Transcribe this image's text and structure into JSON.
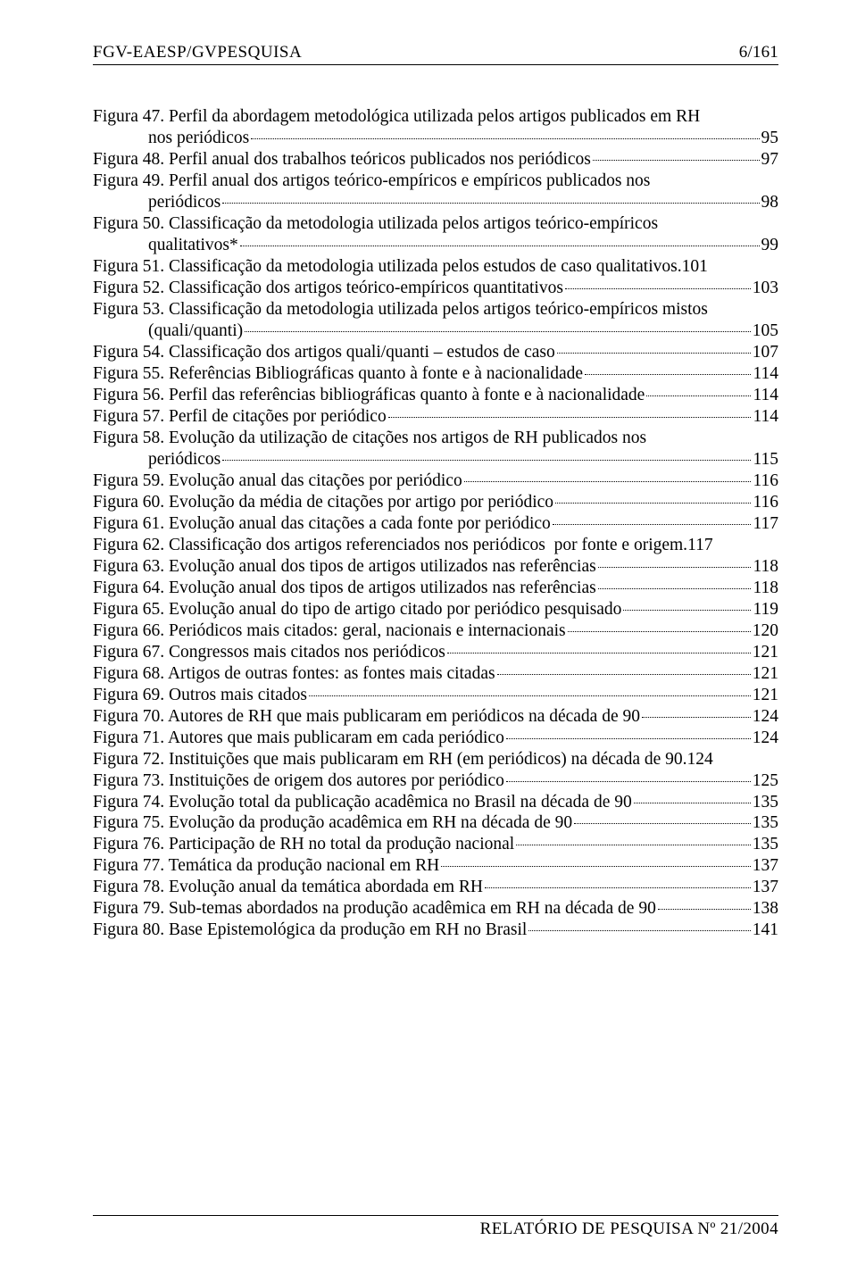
{
  "header": {
    "left": "FGV-EAESP/GVPESQUISA",
    "right": "6/161"
  },
  "footer": {
    "text": "RELATÓRIO DE PESQUISA Nº 21/2004"
  },
  "toc": [
    {
      "lines": [
        "Figura 47. Perfil da abordagem metodológica utilizada pelos artigos publicados em RH",
        "nos periódicos"
      ],
      "page": "95"
    },
    {
      "lines": [
        "Figura 48. Perfil anual dos trabalhos teóricos publicados nos periódicos"
      ],
      "page": "97"
    },
    {
      "lines": [
        "Figura 49. Perfil anual dos artigos teórico-empíricos e empíricos publicados nos",
        "periódicos"
      ],
      "page": "98"
    },
    {
      "lines": [
        "Figura 50. Classificação da metodologia utilizada pelos artigos teórico-empíricos",
        "qualitativos*"
      ],
      "page": "99"
    },
    {
      "lines": [
        "Figura 51. Classificação da metodologia utilizada pelos estudos de caso qualitativos"
      ],
      "page": "101",
      "tight": true
    },
    {
      "lines": [
        "Figura 52. Classificação dos artigos teórico-empíricos quantitativos"
      ],
      "page": "103"
    },
    {
      "lines": [
        "Figura 53. Classificação da metodologia utilizada pelos artigos teórico-empíricos mistos",
        "(quali/quanti)"
      ],
      "page": "105"
    },
    {
      "lines": [
        "Figura 54. Classificação dos artigos quali/quanti – estudos de caso"
      ],
      "page": "107"
    },
    {
      "lines": [
        "Figura 55. Referências Bibliográficas quanto à fonte e à nacionalidade"
      ],
      "page": "114"
    },
    {
      "lines": [
        "Figura 56. Perfil das referências bibliográficas quanto à fonte e à nacionalidade"
      ],
      "page": "114"
    },
    {
      "lines": [
        "Figura 57. Perfil de citações por periódico"
      ],
      "page": "114"
    },
    {
      "lines": [
        "Figura 58. Evolução da utilização de citações nos artigos de RH publicados nos",
        "periódicos"
      ],
      "page": "115"
    },
    {
      "lines": [
        "Figura 59. Evolução anual das citações por periódico"
      ],
      "page": "116"
    },
    {
      "lines": [
        "Figura 60. Evolução da média de citações por artigo por periódico"
      ],
      "page": "116"
    },
    {
      "lines": [
        "Figura 61. Evolução anual das citações a cada fonte por periódico"
      ],
      "page": "117"
    },
    {
      "lines": [
        "Figura 62. Classificação dos artigos referenciados nos periódicos  por fonte e origem"
      ],
      "page": "117",
      "tight": true
    },
    {
      "lines": [
        "Figura 63. Evolução anual dos tipos de artigos utilizados nas referências"
      ],
      "page": "118"
    },
    {
      "lines": [
        "Figura 64. Evolução anual dos tipos de artigos utilizados nas referências"
      ],
      "page": "118"
    },
    {
      "lines": [
        "Figura 65. Evolução anual do tipo de artigo citado por periódico pesquisado"
      ],
      "page": "119"
    },
    {
      "lines": [
        "Figura 66. Periódicos mais citados: geral, nacionais e internacionais"
      ],
      "page": "120"
    },
    {
      "lines": [
        "Figura 67. Congressos mais citados nos periódicos"
      ],
      "page": "121"
    },
    {
      "lines": [
        "Figura 68. Artigos de outras fontes: as fontes mais citadas"
      ],
      "page": "121"
    },
    {
      "lines": [
        "Figura 69. Outros mais citados"
      ],
      "page": "121"
    },
    {
      "lines": [
        "Figura 70. Autores de RH que mais publicaram em periódicos na década de 90"
      ],
      "page": "124"
    },
    {
      "lines": [
        "Figura 71. Autores que mais publicaram em cada periódico"
      ],
      "page": "124"
    },
    {
      "lines": [
        "Figura 72. Instituições que mais publicaram em RH (em periódicos) na década de 90"
      ],
      "page": "124",
      "tight": true
    },
    {
      "lines": [
        "Figura 73. Instituições de origem dos autores por periódico"
      ],
      "page": "125"
    },
    {
      "lines": [
        "Figura 74. Evolução total da publicação acadêmica no Brasil na década de 90"
      ],
      "page": "135"
    },
    {
      "lines": [
        "Figura 75. Evolução da produção acadêmica em RH na década de 90"
      ],
      "page": "135"
    },
    {
      "lines": [
        "Figura 76. Participação de RH no total da produção nacional"
      ],
      "page": "135"
    },
    {
      "lines": [
        "Figura 77. Temática da produção nacional em RH"
      ],
      "page": "137"
    },
    {
      "lines": [
        "Figura 78. Evolução anual da temática abordada em RH"
      ],
      "page": "137"
    },
    {
      "lines": [
        "Figura 79. Sub-temas abordados na produção acadêmica em RH na década de 90"
      ],
      "page": "138"
    },
    {
      "lines": [
        "Figura 80. Base Epistemológica da produção em RH no Brasil"
      ],
      "page": "141"
    }
  ]
}
